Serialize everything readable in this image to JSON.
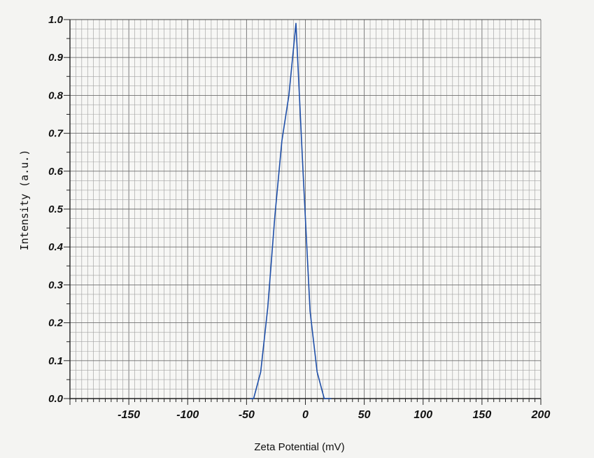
{
  "chart_data": {
    "type": "line",
    "title": "",
    "xlabel": "Zeta Potential (mV)",
    "ylabel": "Intensity (a.u.)",
    "xlim": [
      -200,
      200
    ],
    "ylim": [
      0,
      1.0
    ],
    "x_ticks": [
      -150,
      -100,
      -50,
      0,
      50,
      100,
      150,
      200
    ],
    "y_ticks": [
      0.0,
      0.1,
      0.2,
      0.3,
      0.4,
      0.5,
      0.6,
      0.7,
      0.8,
      0.9,
      1.0
    ],
    "x_tick_labels": [
      "-150",
      "-100",
      "-50",
      "0",
      "50",
      "100",
      "150",
      "200"
    ],
    "y_tick_labels": [
      "0.0",
      "0.1",
      "0.2",
      "0.3",
      "0.4",
      "0.5",
      "0.6",
      "0.7",
      "0.8",
      "0.9",
      "1.0"
    ],
    "grid": true,
    "series": [
      {
        "color": "#1f4fa8",
        "x": [
          -47,
          -44,
          -38,
          -32,
          -26,
          -20,
          -14,
          -8,
          -2,
          4,
          10,
          16,
          22
        ],
        "y": [
          0.0,
          0.0,
          0.07,
          0.24,
          0.48,
          0.68,
          0.8,
          0.99,
          0.6,
          0.23,
          0.07,
          0.0,
          0.0
        ]
      }
    ]
  }
}
